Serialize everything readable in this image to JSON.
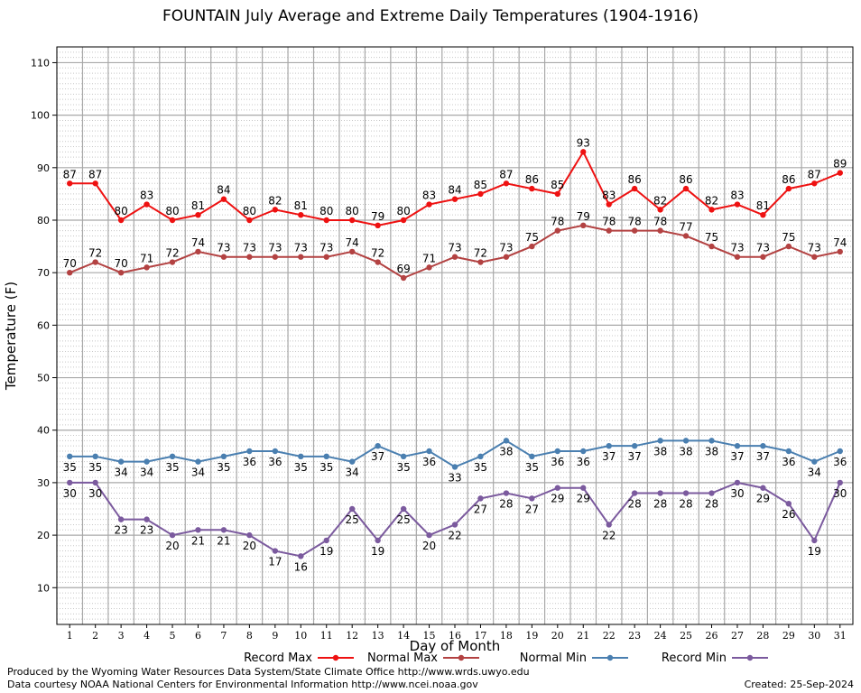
{
  "chart_data": {
    "type": "line",
    "title": "FOUNTAIN July Average and Extreme Daily Temperatures (1904-1916)",
    "xlabel": "Day of Month",
    "ylabel": "Temperature (F)",
    "ylim": [
      3,
      113
    ],
    "yticks": [
      10,
      20,
      30,
      40,
      50,
      60,
      70,
      80,
      90,
      100,
      110
    ],
    "grid": true,
    "legend_position": "bottom",
    "x": [
      1,
      2,
      3,
      4,
      5,
      6,
      7,
      8,
      9,
      10,
      11,
      12,
      13,
      14,
      15,
      16,
      17,
      18,
      19,
      20,
      21,
      22,
      23,
      24,
      25,
      26,
      27,
      28,
      29,
      30,
      31
    ],
    "series": [
      {
        "name": "Record Max",
        "color": "#ee1111",
        "label_position": "above",
        "values": [
          87,
          87,
          80,
          83,
          80,
          81,
          84,
          80,
          82,
          81,
          80,
          80,
          79,
          80,
          83,
          84,
          85,
          87,
          86,
          85,
          93,
          83,
          86,
          82,
          86,
          82,
          83,
          81,
          86,
          87,
          89
        ]
      },
      {
        "name": "Normal Max",
        "color": "#b34242",
        "label_position": "above",
        "values": [
          70,
          72,
          70,
          71,
          72,
          74,
          73,
          73,
          73,
          73,
          73,
          74,
          72,
          69,
          71,
          73,
          72,
          73,
          75,
          78,
          79,
          78,
          78,
          78,
          77,
          75,
          73,
          73,
          75,
          73,
          74
        ]
      },
      {
        "name": "Normal Min",
        "color": "#4a7fb0",
        "label_position": "below",
        "values": [
          35,
          35,
          34,
          34,
          35,
          34,
          35,
          36,
          36,
          35,
          35,
          34,
          37,
          35,
          36,
          33,
          35,
          38,
          35,
          36,
          36,
          37,
          37,
          38,
          38,
          38,
          37,
          37,
          36,
          34,
          36
        ]
      },
      {
        "name": "Record Min",
        "color": "#7b5a9e",
        "label_position": "below",
        "values": [
          30,
          30,
          23,
          23,
          20,
          21,
          21,
          20,
          17,
          16,
          19,
          25,
          19,
          25,
          20,
          22,
          27,
          28,
          27,
          29,
          29,
          22,
          28,
          28,
          28,
          28,
          30,
          29,
          26,
          19,
          30
        ]
      }
    ]
  },
  "footer": {
    "line1": "Produced by the Wyoming Water Resources Data System/State Climate Office http://www.wrds.uwyo.edu",
    "line2": "Data courtesy NOAA National Centers for Environmental Information http://www.ncei.noaa.gov",
    "created": "Created: 25-Sep-2024"
  }
}
